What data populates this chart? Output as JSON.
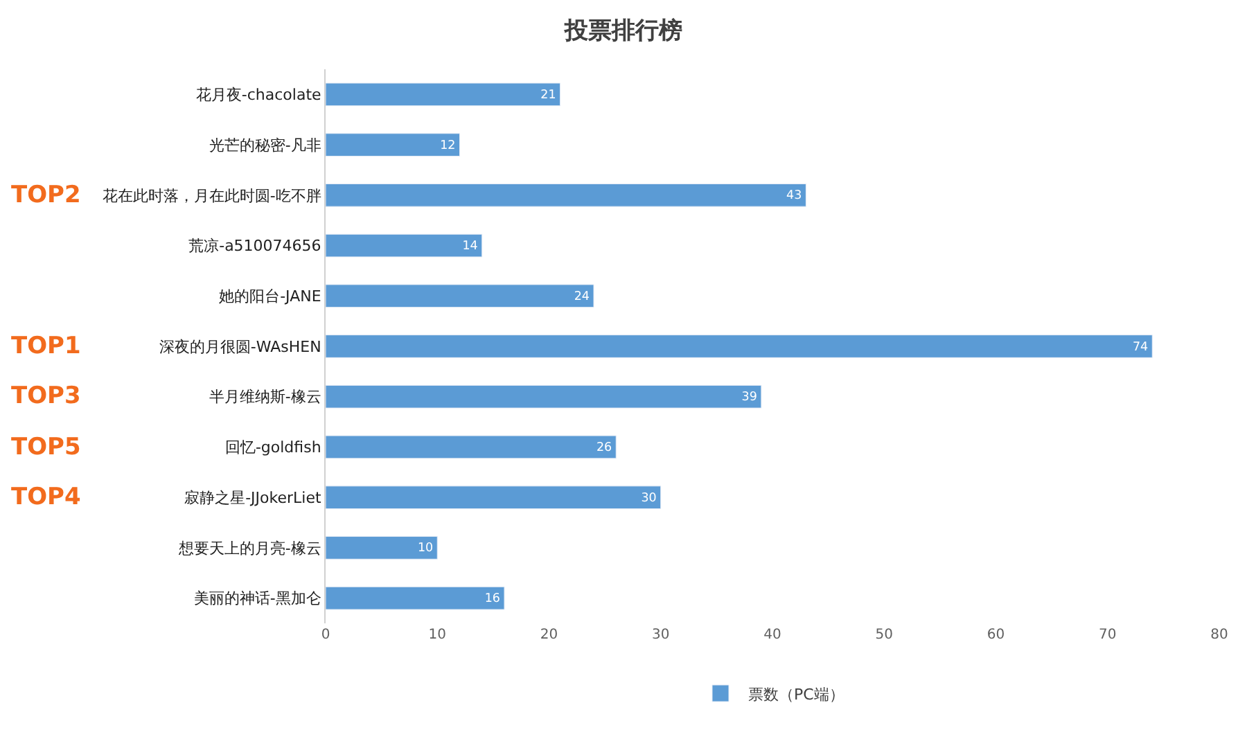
{
  "chart_data": {
    "type": "bar",
    "orientation": "horizontal",
    "title": "投票排行榜",
    "categories": [
      "花月夜-chacolate",
      "光芒的秘密-凡非",
      "花在此时落，月在此时圆-吃不胖",
      "荒凉-a510074656",
      "她的阳台-JANE",
      "深夜的月很圆-WAsHEN",
      "半月维纳斯-橡云",
      "回忆-goldfish",
      "寂静之星-JJokerLiet",
      "想要天上的月亮-橡云",
      "美丽的神话-黑加仑"
    ],
    "series": [
      {
        "name": "票数（PC端）",
        "color": "#5b9bd5",
        "values": [
          21,
          12,
          43,
          14,
          24,
          74,
          39,
          26,
          30,
          10,
          16
        ]
      }
    ],
    "xlim": [
      0,
      80
    ],
    "xticks": [
      0,
      10,
      20,
      30,
      40,
      50,
      60,
      70,
      80
    ],
    "data_labels": true,
    "legend": "bottom",
    "grid": false,
    "annotations": [
      "TOP2",
      "TOP1",
      "TOP3",
      "TOP5",
      "TOP4"
    ]
  }
}
